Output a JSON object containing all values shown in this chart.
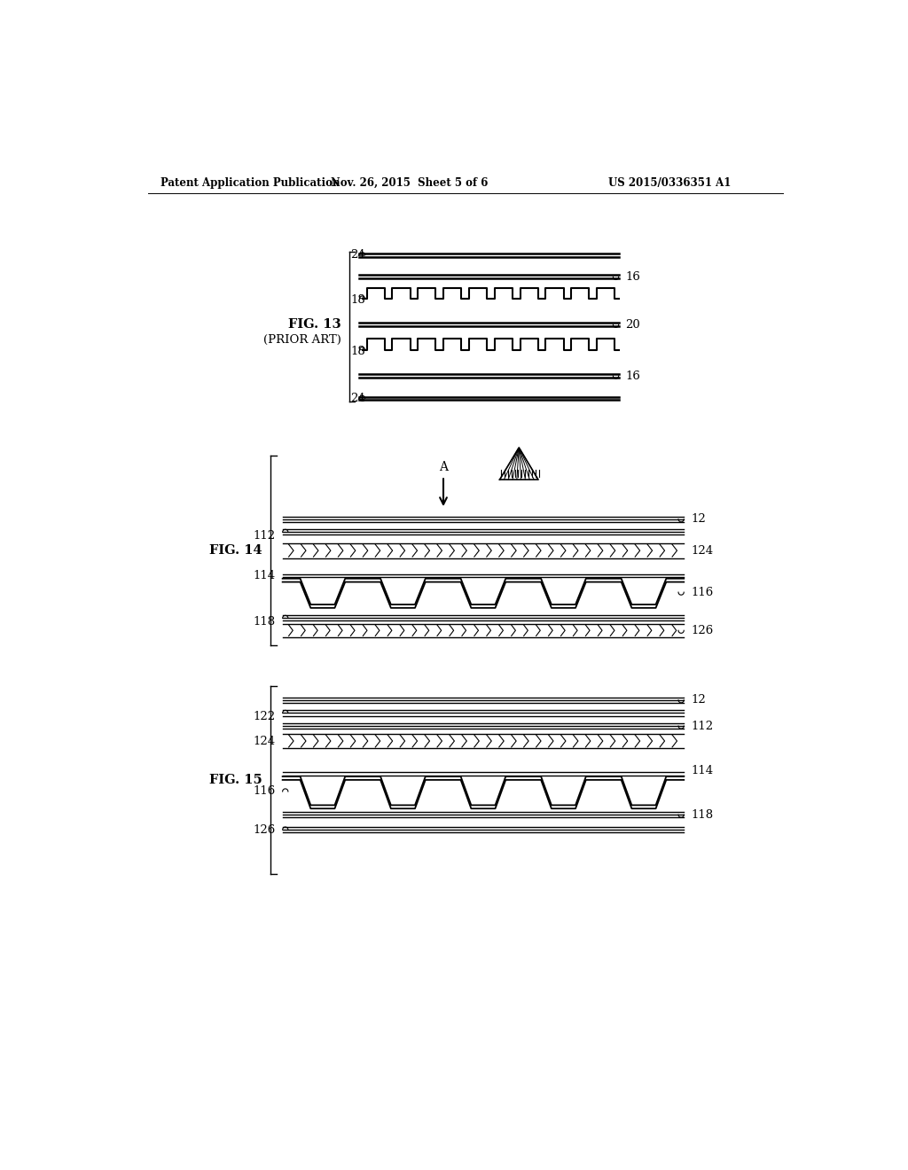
{
  "bg_color": "#ffffff",
  "text_color": "#000000",
  "header_left": "Patent Application Publication",
  "header_center": "Nov. 26, 2015  Sheet 5 of 6",
  "header_right": "US 2015/0336351 A1",
  "fig13_label": "FIG. 13",
  "fig13_sub": "(PRIOR ART)",
  "fig14_label": "FIG. 14",
  "fig15_label": "FIG. 15",
  "line_color": "#000000"
}
